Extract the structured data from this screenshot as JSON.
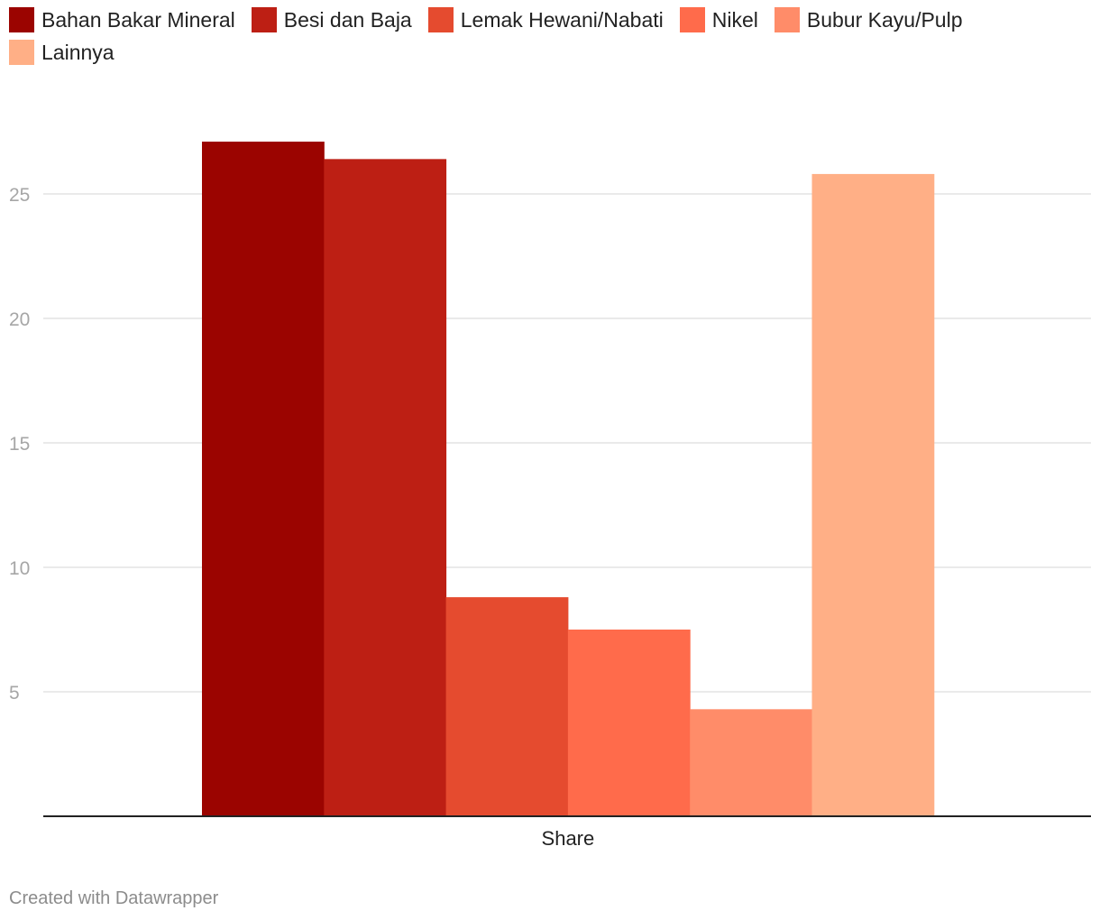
{
  "chart_data": {
    "type": "bar",
    "categories": [
      "Share"
    ],
    "series": [
      {
        "name": "Bahan Bakar Mineral",
        "values": [
          27.1
        ],
        "color": "#9b0400"
      },
      {
        "name": "Besi dan Baja",
        "values": [
          26.4
        ],
        "color": "#bd1f14"
      },
      {
        "name": "Lemak Hewani/Nabati",
        "values": [
          8.8
        ],
        "color": "#e54b2f"
      },
      {
        "name": "Nikel",
        "values": [
          7.5
        ],
        "color": "#ff6b4b"
      },
      {
        "name": "Bubur Kayu/Pulp",
        "values": [
          4.3
        ],
        "color": "#ff8c69"
      },
      {
        "name": "Lainnya",
        "values": [
          25.8
        ],
        "color": "#ffaf86"
      }
    ],
    "yticks": [
      5,
      10,
      15,
      20,
      25
    ],
    "ylim": [
      0,
      29
    ],
    "grid": true,
    "legend": "top-left",
    "title": "",
    "xlabel": "",
    "ylabel": ""
  },
  "footer": {
    "credit": "Created with Datawrapper"
  }
}
